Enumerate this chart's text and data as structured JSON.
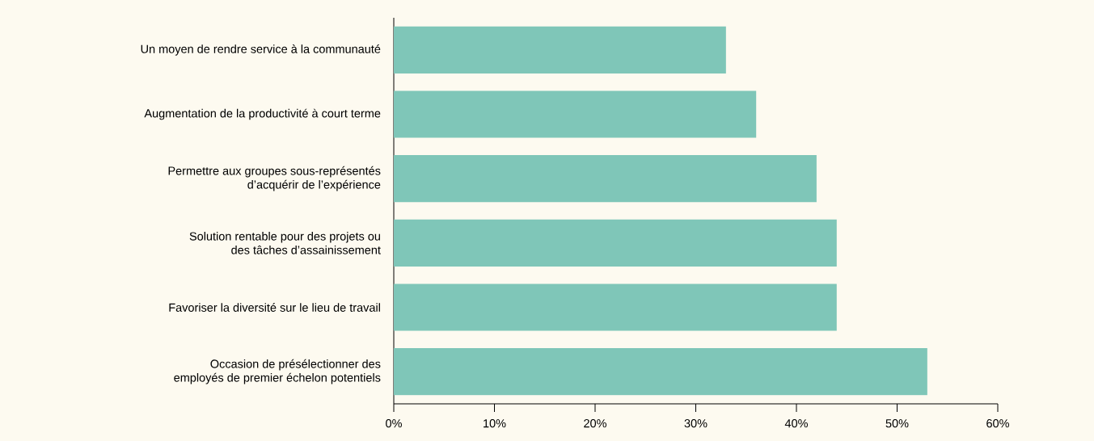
{
  "chart_data": {
    "type": "bar",
    "orientation": "horizontal",
    "categories": [
      "Un moyen de rendre service à la communauté",
      "Augmentation de la productivité à court terme",
      "Permettre aux groupes sous-représentés d’acquérir de l’expérience",
      "Solution rentable pour des projets ou des tâches d’assainissement",
      "Favoriser la diversité sur le lieu de travail",
      "Occasion de présélectionner des employés de premier échelon potentiels"
    ],
    "values": [
      33,
      36,
      42,
      44,
      44,
      53
    ],
    "color": "#7fc6b8",
    "xlim": [
      0,
      60
    ],
    "xticks": [
      {
        "value": 0,
        "label": "0%"
      },
      {
        "value": 10,
        "label": "10%"
      },
      {
        "value": 20,
        "label": "20%"
      },
      {
        "value": 30,
        "label": "30%"
      },
      {
        "value": 40,
        "label": "40%"
      },
      {
        "value": 50,
        "label": "50%"
      },
      {
        "value": 60,
        "label": "60%"
      }
    ]
  }
}
